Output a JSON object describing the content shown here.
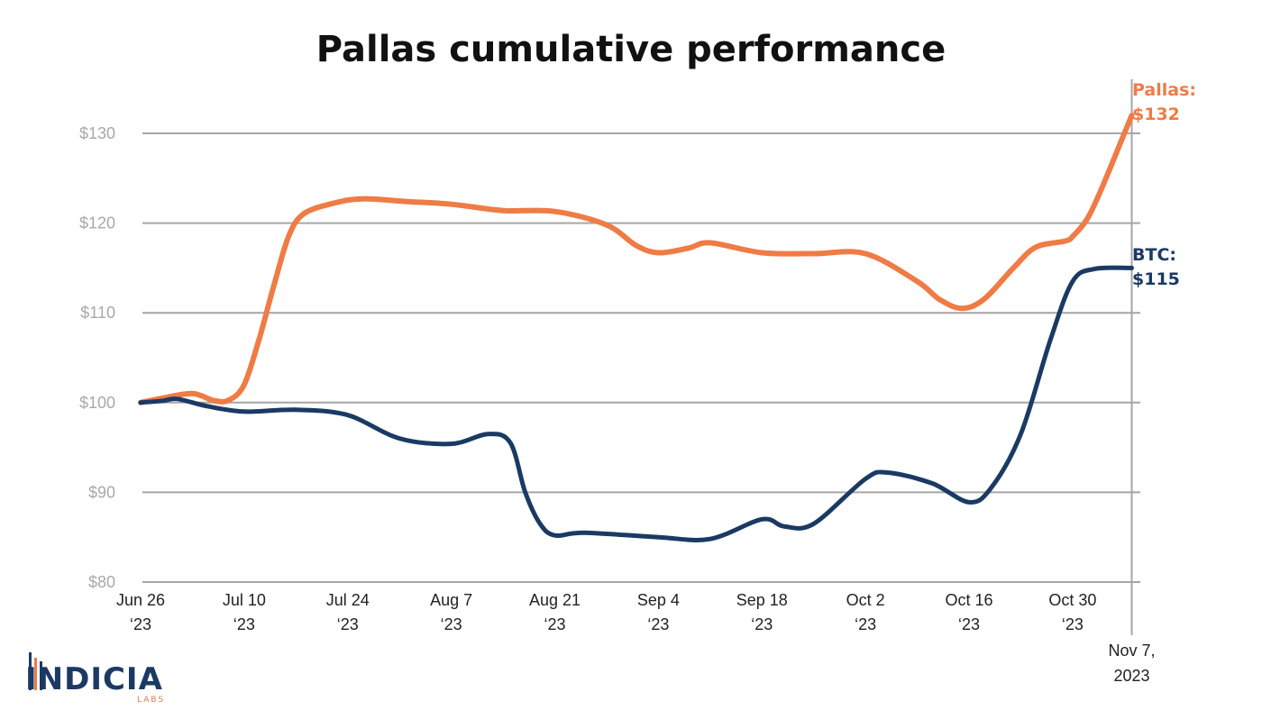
{
  "chart_data": {
    "type": "line",
    "title": "Pallas cumulative performance",
    "xlabel": "",
    "ylabel": "",
    "ylim": [
      80,
      130
    ],
    "yticks": [
      80,
      90,
      100,
      110,
      120,
      130
    ],
    "ytick_labels": [
      "$80",
      "$90",
      "$100",
      "$110",
      "$120",
      "$130"
    ],
    "xticks": [
      {
        "date": "2023-06-26",
        "label1": "Jun 26",
        "label2": "‘23"
      },
      {
        "date": "2023-07-10",
        "label1": "Jul 10",
        "label2": "‘23"
      },
      {
        "date": "2023-07-24",
        "label1": "Jul 24",
        "label2": "‘23"
      },
      {
        "date": "2023-08-07",
        "label1": "Aug 7",
        "label2": "‘23"
      },
      {
        "date": "2023-08-21",
        "label1": "Aug 21",
        "label2": "‘23"
      },
      {
        "date": "2023-09-04",
        "label1": "Sep 4",
        "label2": "‘23"
      },
      {
        "date": "2023-09-18",
        "label1": "Sep 18",
        "label2": "‘23"
      },
      {
        "date": "2023-10-02",
        "label1": "Oct 2",
        "label2": "‘23"
      },
      {
        "date": "2023-10-16",
        "label1": "Oct 16",
        "label2": "‘23"
      },
      {
        "date": "2023-10-30",
        "label1": "Oct 30",
        "label2": "‘23"
      }
    ],
    "end_marker": {
      "date": "2023-11-07",
      "label1": "Nov 7,",
      "label2": "2023"
    },
    "grid": true,
    "series": [
      {
        "name": "Pallas",
        "color": "#ef7b45",
        "end_label1": "Pallas:",
        "end_label2": "$132",
        "points": [
          [
            "2023-06-26",
            100
          ],
          [
            "2023-06-29",
            100.5
          ],
          [
            "2023-07-03",
            101
          ],
          [
            "2023-07-06",
            100.2
          ],
          [
            "2023-07-08",
            100.3
          ],
          [
            "2023-07-10",
            102
          ],
          [
            "2023-07-12",
            107
          ],
          [
            "2023-07-14",
            113
          ],
          [
            "2023-07-16",
            118.5
          ],
          [
            "2023-07-18",
            121
          ],
          [
            "2023-07-22",
            122.2
          ],
          [
            "2023-07-26",
            122.7
          ],
          [
            "2023-08-01",
            122.4
          ],
          [
            "2023-08-07",
            122.1
          ],
          [
            "2023-08-14",
            121.4
          ],
          [
            "2023-08-21",
            121.3
          ],
          [
            "2023-08-28",
            119.8
          ],
          [
            "2023-09-01",
            117.5
          ],
          [
            "2023-09-04",
            116.7
          ],
          [
            "2023-09-08",
            117.2
          ],
          [
            "2023-09-11",
            117.8
          ],
          [
            "2023-09-18",
            116.7
          ],
          [
            "2023-09-25",
            116.6
          ],
          [
            "2023-10-02",
            116.6
          ],
          [
            "2023-10-09",
            113.5
          ],
          [
            "2023-10-12",
            111.5
          ],
          [
            "2023-10-15",
            110.5
          ],
          [
            "2023-10-18",
            111.5
          ],
          [
            "2023-10-22",
            115
          ],
          [
            "2023-10-25",
            117.3
          ],
          [
            "2023-10-29",
            118
          ],
          [
            "2023-10-30",
            118.5
          ],
          [
            "2023-11-01",
            120.5
          ],
          [
            "2023-11-03",
            124
          ],
          [
            "2023-11-06",
            130
          ],
          [
            "2023-11-07",
            132
          ]
        ]
      },
      {
        "name": "BTC",
        "color": "#1b3a63",
        "end_label1": "BTC:",
        "end_label2": "$115",
        "points": [
          [
            "2023-06-26",
            100
          ],
          [
            "2023-06-29",
            100.2
          ],
          [
            "2023-07-01",
            100.4
          ],
          [
            "2023-07-05",
            99.6
          ],
          [
            "2023-07-10",
            99
          ],
          [
            "2023-07-17",
            99.2
          ],
          [
            "2023-07-24",
            98.6
          ],
          [
            "2023-07-31",
            96
          ],
          [
            "2023-08-07",
            95.4
          ],
          [
            "2023-08-12",
            96.5
          ],
          [
            "2023-08-15",
            95.5
          ],
          [
            "2023-08-17",
            90
          ],
          [
            "2023-08-19",
            86.5
          ],
          [
            "2023-08-21",
            85.2
          ],
          [
            "2023-08-25",
            85.5
          ],
          [
            "2023-09-04",
            85
          ],
          [
            "2023-09-11",
            84.8
          ],
          [
            "2023-09-18",
            87
          ],
          [
            "2023-09-21",
            86.2
          ],
          [
            "2023-09-25",
            86.5
          ],
          [
            "2023-10-02",
            91.5
          ],
          [
            "2023-10-05",
            92.2
          ],
          [
            "2023-10-11",
            91
          ],
          [
            "2023-10-16",
            88.9
          ],
          [
            "2023-10-19",
            90.5
          ],
          [
            "2023-10-23",
            96.5
          ],
          [
            "2023-10-27",
            107
          ],
          [
            "2023-10-30",
            113.5
          ],
          [
            "2023-11-02",
            114.9
          ],
          [
            "2023-11-07",
            115
          ]
        ]
      }
    ]
  },
  "logo": {
    "text": "INDICIA",
    "subtext": "LABS",
    "colors": {
      "primary": "#1b3a63",
      "accent": "#ef7b45"
    }
  }
}
